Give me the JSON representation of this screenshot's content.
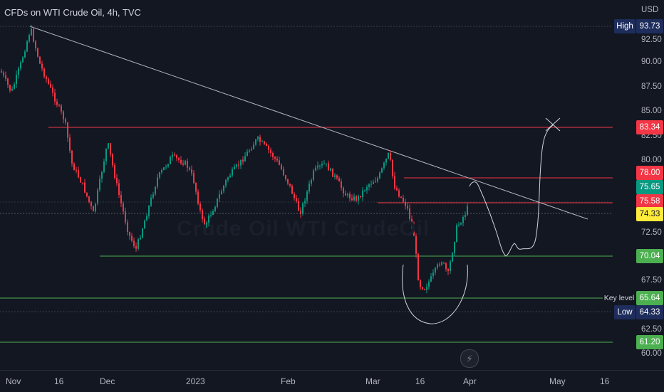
{
  "header": {
    "title": "CFDs on WTI Crude Oil, 4h, TVC"
  },
  "watermark": "Crude Oil WTI CrudeOil",
  "price_axis": {
    "currency": "USD",
    "ticks": [
      "92.50",
      "90.00",
      "87.50",
      "85.00",
      "82.50",
      "80.00",
      "72.50",
      "67.50",
      "62.50",
      "60.00"
    ]
  },
  "price_tags": [
    {
      "value": "93.73",
      "color": "#1e2d5c"
    },
    {
      "value": "83.34",
      "color": "#f23645"
    },
    {
      "value": "78.00",
      "color": "#f23645"
    },
    {
      "value": "75.65",
      "color": "#089981"
    },
    {
      "value": "75.58",
      "color": "#f23645"
    },
    {
      "value": "74.33",
      "color": "#ffeb3b"
    },
    {
      "value": "70.04",
      "color": "#4caf50"
    },
    {
      "value": "65.64",
      "color": "#4caf50"
    },
    {
      "value": "64.33",
      "color": "#1e2d5c"
    },
    {
      "value": "61.20",
      "color": "#4caf50"
    }
  ],
  "side_labels": {
    "high": "High",
    "key_level": "Key level",
    "low": "Low"
  },
  "time_axis": [
    "Nov",
    "16",
    "Dec",
    "2023",
    "Feb",
    "Mar",
    "16",
    "Apr",
    "May",
    "16"
  ],
  "icons": {
    "bolt": "lightning-bolt-icon"
  },
  "colors": {
    "up": "#089981",
    "down": "#f23645",
    "resistance": "#f23645",
    "support": "#4caf50"
  }
}
